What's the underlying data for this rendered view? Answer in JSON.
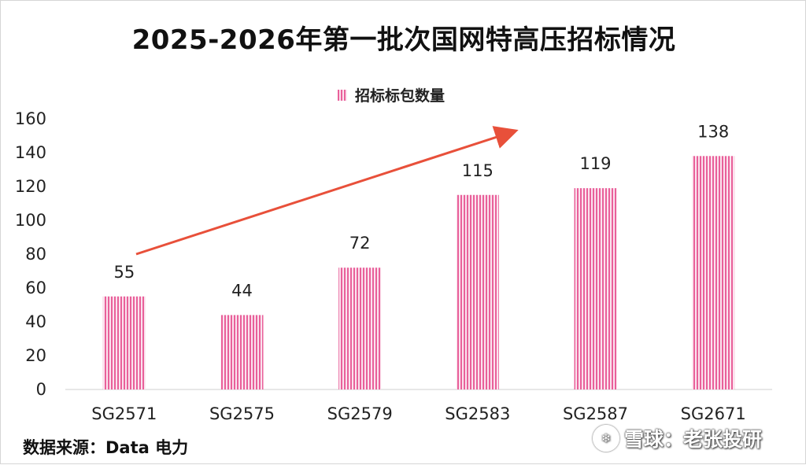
{
  "chart_data": {
    "type": "bar",
    "title": "2025-2026年第一批次国网特高压招标情况",
    "legend": [
      "招标标包数量"
    ],
    "legend_position": "top-center",
    "categories": [
      "SG2571",
      "SG2575",
      "SG2579",
      "SG2583",
      "SG2587",
      "SG2671"
    ],
    "series": [
      {
        "name": "招标标包数量",
        "values": [
          55,
          44,
          72,
          115,
          119,
          138
        ]
      }
    ],
    "data_labels": [
      "55",
      "44",
      "72",
      "115",
      "119",
      "138"
    ],
    "y_ticks": [
      "0",
      "20",
      "40",
      "60",
      "80",
      "100",
      "120",
      "140",
      "160"
    ],
    "ylim": [
      0,
      160
    ],
    "xlabel": "",
    "ylabel": "",
    "grid": false,
    "bar_color": "#e9609a",
    "arrow_color": "#e8503a",
    "annotation": "trend arrow pointing up-right"
  },
  "source": "数据来源：Data 电力",
  "watermark": {
    "text": "雪球：老张投研"
  }
}
